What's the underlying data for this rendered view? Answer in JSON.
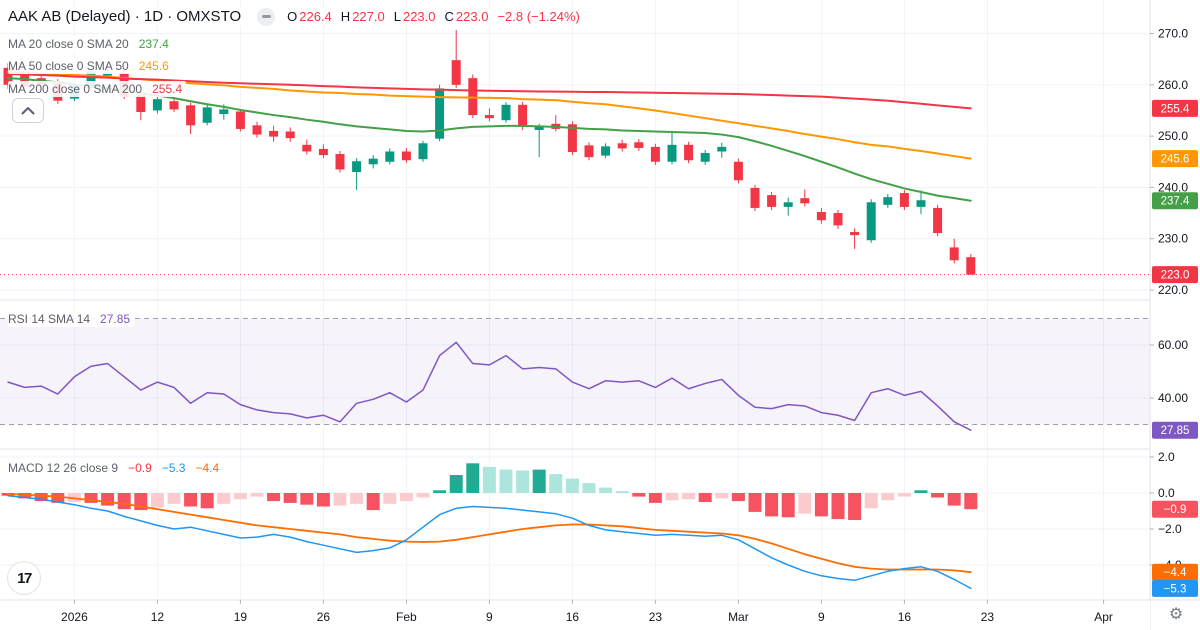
{
  "header": {
    "title": "AAK AB (Delayed) · 1D · OMXSTO",
    "ohlc": {
      "open_label": "O",
      "open": "226.4",
      "high_label": "H",
      "high": "227.0",
      "low_label": "L",
      "low": "223.0",
      "close_label": "C",
      "close": "223.0",
      "change": "−2.8 (−1.24%)"
    },
    "indicators": [
      {
        "label": "MA 20 close 0 SMA 20",
        "value": "237.4"
      },
      {
        "label": "MA 50 close 0 SMA 50",
        "value": "245.6"
      },
      {
        "label": "MA 200 close 0 SMA 200",
        "value": "255.4"
      }
    ]
  },
  "rsi_header": {
    "label": "RSI 14 SMA 14",
    "value": "27.85"
  },
  "macd_header": {
    "label": "MACD 12 26 close 9",
    "hist": "−0.9",
    "macd": "−5.3",
    "signal": "−4.4"
  },
  "icons": {
    "minus_circle": "minus",
    "chevron_up": "chevron-up",
    "gear": "⚙",
    "logo_text": "17"
  },
  "colors": {
    "up": "#089981",
    "down": "#f23645",
    "ma20": "#43a047",
    "ma50": "#ff9800",
    "ma200": "#f23645",
    "rsi_line": "#7e57c2",
    "rsi_band": "rgba(126,87,194,0.07)",
    "macd_line": "#2196f3",
    "signal_line": "#ff6d00",
    "hist_pos": "#22ab94",
    "hist_pos_weak": "#ace5dc",
    "hist_neg": "#f7525f",
    "hist_neg_weak": "#fccbcd",
    "grid": "#f0f3fa",
    "separator": "#e0e3eb",
    "axis_text": "#131722",
    "value_red": "#f23645",
    "value_blue": "#2196f3",
    "value_orange": "#ff6d00",
    "close_line": "#f23645"
  },
  "chart_data": {
    "type": "candlestick",
    "symbol": "AAK AB (Delayed)",
    "interval": "1D",
    "exchange": "OMXSTO",
    "panes": [
      "price",
      "rsi",
      "macd"
    ],
    "price_axis": {
      "ticks": [
        270,
        260,
        250,
        240,
        230,
        220
      ],
      "last_close": 223.0,
      "prev_close": 225.8,
      "grid": true
    },
    "x_labels": [
      {
        "t": "2026",
        "i": 4
      },
      {
        "t": "12",
        "i": 9
      },
      {
        "t": "19",
        "i": 14
      },
      {
        "t": "26",
        "i": 19
      },
      {
        "t": "Feb",
        "i": 24
      },
      {
        "t": "9",
        "i": 29
      },
      {
        "t": "16",
        "i": 34
      },
      {
        "t": "23",
        "i": 39
      },
      {
        "t": "Mar",
        "i": 44
      },
      {
        "t": "9",
        "i": 49
      },
      {
        "t": "16",
        "i": 54
      },
      {
        "t": "23",
        "i": 59
      },
      {
        "t": "Apr",
        "i": 66
      }
    ],
    "candles": [
      [
        "Dec 29",
        263.3,
        264.2,
        259.2,
        260.0
      ],
      [
        "Dec 30",
        261.9,
        262.5,
        258.8,
        259.6
      ],
      [
        "Dec 31",
        261.3,
        262.0,
        259.4,
        260.1
      ],
      [
        "Jan 2",
        260.4,
        261.1,
        256.3,
        256.9
      ],
      [
        "Jan 5",
        257.3,
        260.3,
        256.8,
        259.9
      ],
      [
        "Jan 6",
        259.4,
        263.0,
        258.9,
        262.6
      ],
      [
        "Jan 7",
        261.8,
        263.9,
        261.2,
        262.4
      ],
      [
        "Jan 8",
        262.3,
        262.9,
        257.2,
        257.7
      ],
      [
        "Jan 9",
        258.1,
        258.6,
        253.1,
        254.7
      ],
      [
        "Jan 12",
        255.0,
        257.8,
        254.4,
        257.2
      ],
      [
        "Jan 13",
        256.8,
        257.6,
        254.7,
        255.2
      ],
      [
        "Jan 14",
        256.0,
        256.5,
        250.4,
        252.1
      ],
      [
        "Jan 15",
        252.6,
        256.1,
        252.1,
        255.6
      ],
      [
        "Jan 16",
        254.3,
        256.2,
        253.2,
        255.2
      ],
      [
        "Jan 19",
        254.8,
        255.3,
        250.9,
        251.4
      ],
      [
        "Jan 20",
        252.1,
        252.8,
        249.7,
        250.3
      ],
      [
        "Jan 21",
        251.0,
        252.0,
        248.9,
        249.9
      ],
      [
        "Jan 22",
        250.9,
        251.7,
        248.9,
        249.6
      ],
      [
        "Jan 23",
        248.3,
        249.3,
        246.4,
        247.0
      ],
      [
        "Jan 26",
        247.5,
        248.4,
        245.7,
        246.3
      ],
      [
        "Jan 27",
        246.5,
        247.1,
        242.9,
        243.5
      ],
      [
        "Jan 28",
        243.0,
        245.7,
        239.5,
        245.1
      ],
      [
        "Jan 29",
        244.5,
        246.3,
        243.7,
        245.6
      ],
      [
        "Jan 30",
        245.0,
        247.6,
        244.5,
        247.0
      ],
      [
        "Feb 2",
        247.0,
        247.7,
        244.8,
        245.3
      ],
      [
        "Feb 3",
        245.5,
        249.1,
        245.0,
        248.6
      ],
      [
        "Feb 4",
        249.5,
        260.0,
        249.0,
        259.3
      ],
      [
        "Feb 5",
        264.8,
        270.7,
        259.4,
        260.0
      ],
      [
        "Feb 6",
        261.3,
        262.0,
        253.5,
        254.1
      ],
      [
        "Feb 9",
        254.1,
        255.4,
        252.9,
        253.5
      ],
      [
        "Feb 10",
        253.1,
        256.6,
        252.6,
        256.1
      ],
      [
        "Feb 11",
        256.1,
        256.7,
        251.2,
        251.8
      ],
      [
        "Feb 12",
        251.2,
        252.4,
        245.9,
        252.0
      ],
      [
        "Feb 13",
        252.4,
        254.1,
        250.9,
        251.4
      ],
      [
        "Feb 16",
        252.3,
        252.9,
        246.3,
        246.9
      ],
      [
        "Feb 17",
        248.2,
        248.8,
        245.3,
        245.9
      ],
      [
        "Feb 18",
        246.2,
        248.6,
        245.7,
        248.0
      ],
      [
        "Feb 19",
        248.6,
        249.3,
        247.0,
        247.6
      ],
      [
        "Feb 20",
        248.8,
        249.4,
        247.1,
        247.7
      ],
      [
        "Feb 23",
        247.9,
        248.5,
        244.4,
        245.0
      ],
      [
        "Feb 24",
        245.0,
        251.0,
        244.5,
        248.3
      ],
      [
        "Feb 25",
        248.3,
        248.9,
        244.7,
        245.3
      ],
      [
        "Feb 26",
        245.0,
        247.3,
        244.4,
        246.7
      ],
      [
        "Feb 27",
        247.0,
        248.7,
        245.8,
        247.9
      ],
      [
        "Mar 2",
        245.0,
        245.6,
        240.8,
        241.4
      ],
      [
        "Mar 3",
        239.9,
        240.5,
        235.4,
        236.0
      ],
      [
        "Mar 4",
        238.5,
        239.1,
        235.6,
        236.2
      ],
      [
        "Mar 5",
        236.2,
        238.0,
        234.5,
        237.1
      ],
      [
        "Mar 6",
        237.9,
        239.6,
        236.3,
        236.9
      ],
      [
        "Mar 9",
        235.2,
        236.0,
        232.9,
        233.6
      ],
      [
        "Mar 10",
        235.0,
        235.6,
        231.9,
        232.6
      ],
      [
        "Mar 11",
        231.3,
        232.0,
        228.0,
        230.7
      ],
      [
        "Mar 12",
        229.7,
        237.7,
        229.2,
        237.1
      ],
      [
        "Mar 13",
        236.6,
        238.7,
        236.0,
        238.1
      ],
      [
        "Mar 16",
        238.9,
        239.5,
        235.6,
        236.2
      ],
      [
        "Mar 17",
        236.2,
        239.4,
        234.8,
        237.5
      ],
      [
        "Mar 18",
        236.0,
        236.6,
        230.5,
        231.1
      ],
      [
        "Mar 19",
        228.3,
        230.0,
        225.2,
        225.8
      ],
      [
        "Mar 20",
        226.4,
        227.0,
        223.0,
        223.0
      ]
    ],
    "ma20": [
      261.3,
      261.1,
      260.8,
      260.5,
      260.1,
      259.7,
      259.3,
      258.9,
      258.4,
      257.9,
      257.4,
      256.8,
      256.2,
      255.7,
      255.1,
      254.6,
      254.1,
      253.7,
      253.2,
      252.8,
      252.3,
      251.9,
      251.6,
      251.3,
      251.0,
      250.9,
      251.1,
      251.5,
      251.8,
      251.9,
      252.0,
      252.0,
      251.9,
      251.8,
      251.6,
      251.4,
      251.3,
      251.1,
      251.0,
      250.9,
      250.8,
      250.7,
      250.6,
      250.3,
      249.8,
      249.0,
      248.1,
      247.1,
      246.1,
      245.0,
      243.9,
      242.7,
      241.6,
      240.7,
      239.8,
      239.1,
      238.4,
      237.9,
      237.4
    ],
    "ma50": [
      262.5,
      262.35,
      262.2,
      262.1,
      261.9,
      261.8,
      261.6,
      261.3,
      261.1,
      260.8,
      260.6,
      260.3,
      260.1,
      259.9,
      259.6,
      259.4,
      259.2,
      258.9,
      258.7,
      258.5,
      258.4,
      258.2,
      258.1,
      257.9,
      257.8,
      257.7,
      257.6,
      257.55,
      257.5,
      257.45,
      257.4,
      257.2,
      257.1,
      257.0,
      256.7,
      256.4,
      256.2,
      255.8,
      255.4,
      255.0,
      254.5,
      254.0,
      253.5,
      253.0,
      252.5,
      252.0,
      251.5,
      251.0,
      250.4,
      249.9,
      249.4,
      248.8,
      248.3,
      248.0,
      247.5,
      247.1,
      246.6,
      246.1,
      245.6
    ],
    "ma200": [
      262.1,
      262.0,
      261.9,
      261.8,
      261.6,
      261.5,
      261.4,
      261.2,
      261.1,
      261.0,
      260.85,
      260.7,
      260.55,
      260.4,
      260.3,
      260.2,
      260.1,
      260.0,
      259.9,
      259.75,
      259.65,
      259.5,
      259.4,
      259.3,
      259.2,
      259.1,
      259.05,
      258.95,
      258.9,
      258.85,
      258.8,
      258.75,
      258.7,
      258.68,
      258.65,
      258.6,
      258.6,
      258.55,
      258.5,
      258.45,
      258.4,
      258.35,
      258.3,
      258.25,
      258.2,
      258.1,
      258.0,
      257.9,
      257.8,
      257.7,
      257.5,
      257.3,
      257.1,
      256.9,
      256.6,
      256.3,
      256.0,
      255.7,
      255.4
    ],
    "rsi": {
      "period": 14,
      "sma_period": 14,
      "upper_band": 70,
      "lower_band": 30,
      "ticks": [
        60,
        40
      ],
      "last": 27.85,
      "values": [
        46,
        44,
        44.5,
        41.5,
        48,
        52,
        53,
        48,
        43,
        46,
        44,
        38,
        42,
        41.5,
        37.5,
        35.5,
        34.5,
        34,
        32.5,
        33.5,
        31,
        38,
        39.5,
        42,
        38.5,
        43,
        56,
        61,
        53,
        52.5,
        56,
        51,
        51.5,
        51,
        46,
        43.5,
        46.5,
        46,
        46.5,
        44,
        47.5,
        43.5,
        45.5,
        47,
        41,
        36.5,
        36,
        37.5,
        37,
        34.5,
        33.5,
        31.5,
        42,
        43.5,
        41,
        42.5,
        37,
        31,
        27.85
      ]
    },
    "macd": {
      "fast": 12,
      "slow": 26,
      "signal_period": 9,
      "ticks": [
        2,
        0,
        -2,
        -4
      ],
      "hist": [
        -0.15,
        -0.3,
        -0.45,
        -0.55,
        -0.5,
        -0.55,
        -0.7,
        -0.9,
        -0.95,
        -0.8,
        -0.6,
        -0.75,
        -0.85,
        -0.6,
        -0.35,
        -0.2,
        -0.45,
        -0.55,
        -0.65,
        -0.75,
        -0.7,
        -0.6,
        -0.95,
        -0.6,
        -0.45,
        -0.25,
        0.15,
        1.0,
        1.65,
        1.45,
        1.3,
        1.25,
        1.3,
        1.05,
        0.8,
        0.55,
        0.3,
        0.1,
        -0.2,
        -0.55,
        -0.4,
        -0.35,
        -0.5,
        -0.3,
        -0.45,
        -1.05,
        -1.3,
        -1.35,
        -1.15,
        -1.3,
        -1.45,
        -1.5,
        -0.85,
        -0.4,
        -0.2,
        0.15,
        -0.25,
        -0.7,
        -0.9
      ],
      "macd_line": [
        -0.15,
        -0.25,
        -0.35,
        -0.5,
        -0.65,
        -0.85,
        -1.0,
        -1.3,
        -1.55,
        -1.8,
        -2.0,
        -1.9,
        -2.1,
        -2.3,
        -2.5,
        -2.45,
        -2.3,
        -2.45,
        -2.7,
        -2.9,
        -3.1,
        -3.3,
        -3.2,
        -3.05,
        -2.6,
        -1.9,
        -1.2,
        -0.85,
        -0.75,
        -0.8,
        -0.85,
        -0.95,
        -1.05,
        -1.15,
        -1.4,
        -1.8,
        -2.05,
        -2.15,
        -2.25,
        -2.35,
        -2.3,
        -2.35,
        -2.4,
        -2.35,
        -2.6,
        -3.1,
        -3.6,
        -4.0,
        -4.35,
        -4.6,
        -4.75,
        -4.85,
        -4.6,
        -4.35,
        -4.2,
        -4.1,
        -4.35,
        -4.8,
        -5.3
      ],
      "signal_line": [
        -0.05,
        -0.1,
        -0.15,
        -0.2,
        -0.3,
        -0.4,
        -0.5,
        -0.6,
        -0.75,
        -0.9,
        -1.05,
        -1.2,
        -1.35,
        -1.5,
        -1.65,
        -1.8,
        -1.9,
        -2.0,
        -2.1,
        -2.2,
        -2.3,
        -2.45,
        -2.55,
        -2.65,
        -2.7,
        -2.72,
        -2.7,
        -2.6,
        -2.45,
        -2.3,
        -2.15,
        -2.0,
        -1.9,
        -1.8,
        -1.75,
        -1.75,
        -1.8,
        -1.85,
        -1.95,
        -2.05,
        -2.1,
        -2.15,
        -2.2,
        -2.25,
        -2.35,
        -2.55,
        -2.8,
        -3.1,
        -3.4,
        -3.65,
        -3.9,
        -4.1,
        -4.2,
        -4.25,
        -4.25,
        -4.25,
        -4.25,
        -4.3,
        -4.4
      ]
    },
    "badges": [
      {
        "text": "255.4",
        "scale": "price",
        "value": 255.4,
        "color": "#f23645"
      },
      {
        "text": "245.6",
        "scale": "price",
        "value": 245.6,
        "color": "#ff9800"
      },
      {
        "text": "237.4",
        "scale": "price",
        "value": 237.4,
        "color": "#43a047"
      },
      {
        "text": "223.0",
        "scale": "price",
        "value": 223.0,
        "color": "#f23645"
      },
      {
        "text": "27.85",
        "scale": "rsi",
        "value": 27.85,
        "color": "#7e57c2"
      },
      {
        "text": "−0.9",
        "scale": "macd",
        "value": -0.9,
        "color": "#f7525f"
      },
      {
        "text": "−4.4",
        "scale": "macd",
        "value": -4.4,
        "color": "#ff6d00"
      },
      {
        "text": "−5.3",
        "scale": "macd",
        "value": -5.3,
        "color": "#2196f3"
      }
    ]
  }
}
